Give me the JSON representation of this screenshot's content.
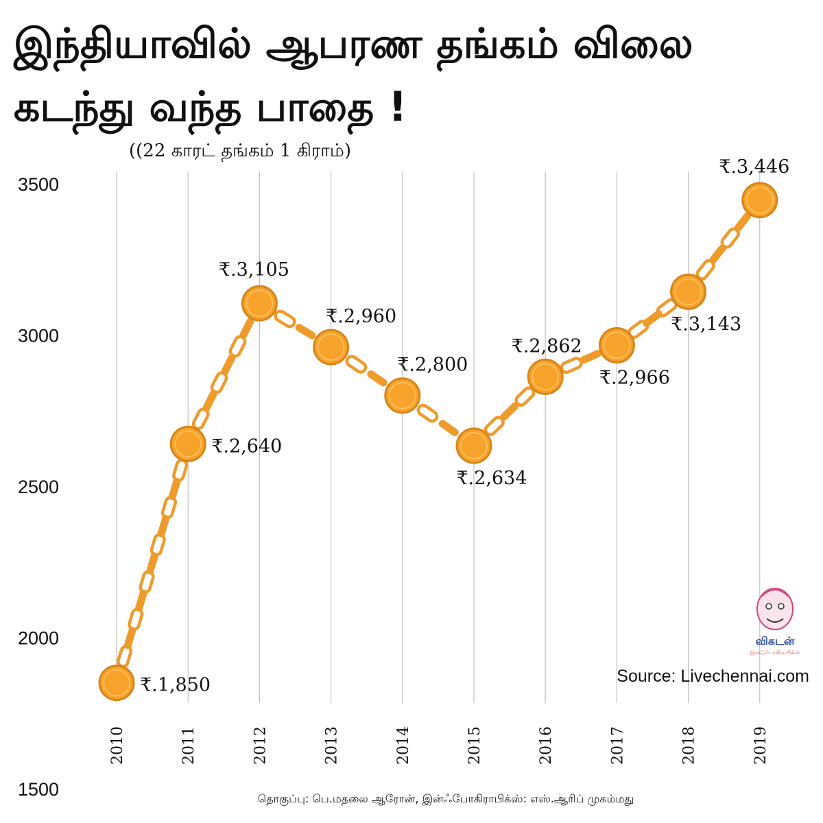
{
  "title": {
    "line1": "இந்தியாவில் ஆபரண தங்கம் விலை",
    "line2": "கடந்து வந்த பாதை !"
  },
  "subtitle": "((22 காரட் தங்கம் 1 கிராம்)",
  "source": "Source: Livechennai.com",
  "credit": "தொகுப்பு: பெ.மதலை ஆரோன், இன்ஃபோகிராபிக்ஸ்: எஸ்.ஆரிப் முகம்மது",
  "logo": {
    "name": "விகடன்",
    "sub": "இன்ஃபோகிராபிக்ஸ்"
  },
  "colors": {
    "gold": "#f7a22a",
    "gold_dark": "#d9841a",
    "chain": "#ef9b2c",
    "grid": "#b5b5b5",
    "text": "#111111"
  },
  "chart_data": {
    "type": "line",
    "x": [
      "2010",
      "2011",
      "2012",
      "2013",
      "2014",
      "2015",
      "2016",
      "2017",
      "2018",
      "2019"
    ],
    "values": [
      1850,
      2640,
      3105,
      2960,
      2800,
      2634,
      2862,
      2966,
      3143,
      3446
    ],
    "data_labels": [
      "₹.1,850",
      "₹.2,640",
      "₹.3,105",
      "₹.2,960",
      "₹.2,800",
      "₹.2,634",
      "₹.2,862",
      "₹.2,966",
      "₹.3,143",
      "₹.3,446"
    ],
    "label_positions": [
      "right",
      "right",
      "above",
      "above-right",
      "above-right",
      "below",
      "above-left",
      "below",
      "below",
      "above"
    ],
    "yticks": [
      "1500",
      "2000",
      "2500",
      "3000",
      "3500"
    ],
    "ylim": [
      1500,
      3500
    ],
    "grid": "vertical",
    "xlabel": "",
    "ylabel": ""
  }
}
